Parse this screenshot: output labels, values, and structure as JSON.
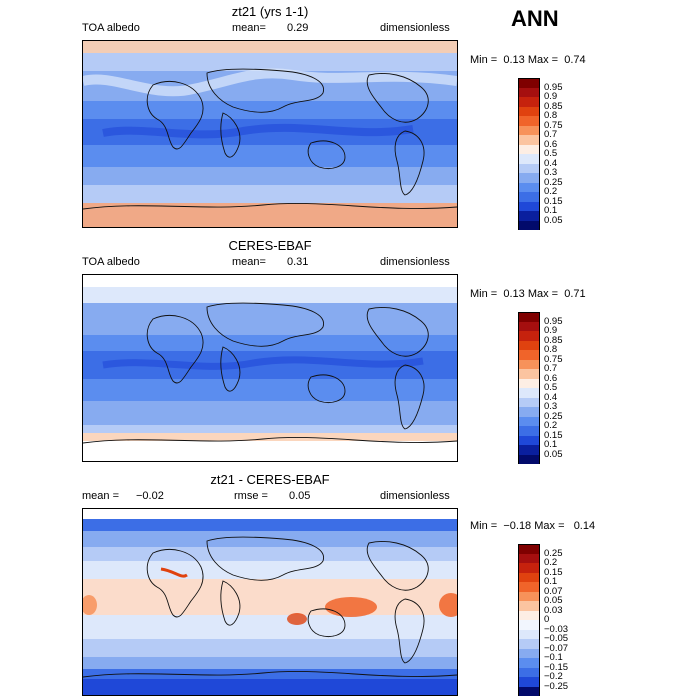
{
  "season": "ANN",
  "panels": [
    {
      "title": "zt21 (yrs 1-1)",
      "left_label": "TOA albedo",
      "mid_label": "mean=",
      "mid_value": "0.29",
      "right_label": "dimensionless",
      "min_label": "Min =",
      "min_value": "0.13",
      "max_label": "Max =",
      "max_value": "0.74",
      "levels": [
        "0.95",
        "0.9",
        "0.85",
        "0.8",
        "0.75",
        "0.7",
        "0.6",
        "0.5",
        "0.4",
        "0.3",
        "0.25",
        "0.2",
        "0.15",
        "0.1",
        "0.05"
      ]
    },
    {
      "title": "CERES-EBAF",
      "left_label": "TOA albedo",
      "mid_label": "mean=",
      "mid_value": "0.31",
      "right_label": "dimensionless",
      "min_label": "Min =",
      "min_value": "0.13",
      "max_label": "Max =",
      "max_value": "0.71",
      "levels": [
        "0.95",
        "0.9",
        "0.85",
        "0.8",
        "0.75",
        "0.7",
        "0.6",
        "0.5",
        "0.4",
        "0.3",
        "0.25",
        "0.2",
        "0.15",
        "0.1",
        "0.05"
      ]
    },
    {
      "title": "zt21 - CERES-EBAF",
      "left_label": "mean =",
      "left_value": "−0.02",
      "mid_label": "rmse =",
      "mid_value": "0.05",
      "right_label": "dimensionless",
      "min_label": "Min =",
      "min_value": "−0.18",
      "max_label": "Max =",
      "max_value": "0.14",
      "levels": [
        "0.25",
        "0.2",
        "0.15",
        "0.1",
        "0.07",
        "0.05",
        "0.03",
        "0",
        "−0.03",
        "−0.05",
        "−0.07",
        "−0.1",
        "−0.15",
        "−0.2",
        "−0.25"
      ]
    }
  ],
  "colors": {
    "abs_palette": [
      "#7f0000",
      "#a50f0f",
      "#c6220d",
      "#e0420f",
      "#f0642a",
      "#f7925a",
      "#fbc4a0",
      "#fdeee4",
      "#dde8fb",
      "#b5cbf6",
      "#87abf0",
      "#5b8def",
      "#3c6ee6",
      "#1f48d8",
      "#0a1f9e",
      "#020a6b"
    ],
    "diff_palette": [
      "#7f0000",
      "#a50f0f",
      "#c6220d",
      "#e0420f",
      "#f0642a",
      "#f7925a",
      "#fbc4a0",
      "#fdeee4",
      "#f2f6fe",
      "#dde8fb",
      "#b5cbf6",
      "#87abf0",
      "#5b8def",
      "#3c6ee6",
      "#1f48d8",
      "#020a6b"
    ]
  }
}
